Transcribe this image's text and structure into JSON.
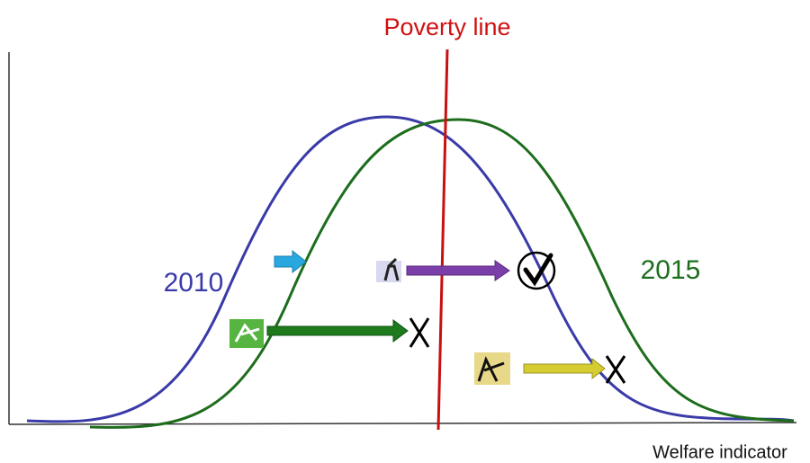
{
  "poverty_line": {
    "label": "Poverty line"
  },
  "curves": [
    {
      "label": "2010"
    },
    {
      "label": "2015"
    }
  ],
  "x_axis": {
    "label": "Welfare indicator"
  }
}
